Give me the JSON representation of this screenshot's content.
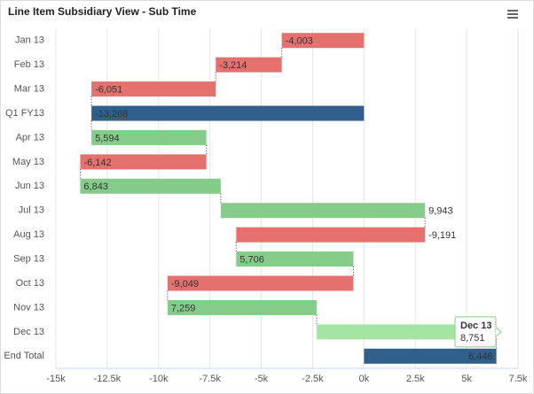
{
  "chart_data": {
    "type": "waterfall",
    "title": "Line Item Subsidiary View - Sub Time",
    "categories": [
      "Jan 13",
      "Feb 13",
      "Mar 13",
      "Q1 FY13",
      "Apr 13",
      "May 13",
      "Jun 13",
      "Jul 13",
      "Aug 13",
      "Sep 13",
      "Oct 13",
      "Nov 13",
      "Dec 13",
      "End Total"
    ],
    "values": [
      -4003,
      -3214,
      -6051,
      -13268,
      5594,
      -6142,
      6843,
      9943,
      -9191,
      5706,
      -9049,
      7259,
      8751,
      6446
    ],
    "value_labels": [
      "-4,003",
      "-3,214",
      "-6,051",
      "-13,268",
      "5,594",
      "-6,142",
      "6,843",
      "9,943",
      "-9,191",
      "5,706",
      "-9,049",
      "7,259",
      "8,751",
      "6,446"
    ],
    "sum_indices": [
      3,
      13
    ],
    "up_color": "#85cc8a",
    "down_color": "#e4716e",
    "sum_color": "#2f5f8b",
    "highlight_color": "#a3e4a3",
    "highlight_index": 12,
    "xlim": [
      -15000,
      7500
    ],
    "xticks": [
      {
        "value": -15000,
        "label": "-15k"
      },
      {
        "value": -12500,
        "label": "-12.5k"
      },
      {
        "value": -10000,
        "label": "-10k"
      },
      {
        "value": -7500,
        "label": "-7.5k"
      },
      {
        "value": -5000,
        "label": "-5k"
      },
      {
        "value": -2500,
        "label": "-2.5k"
      },
      {
        "value": 0,
        "label": "0k"
      },
      {
        "value": 2500,
        "label": "2.5k"
      },
      {
        "value": 5000,
        "label": "5k"
      },
      {
        "value": 7500,
        "label": "7.5k"
      }
    ],
    "grid": true
  }
}
